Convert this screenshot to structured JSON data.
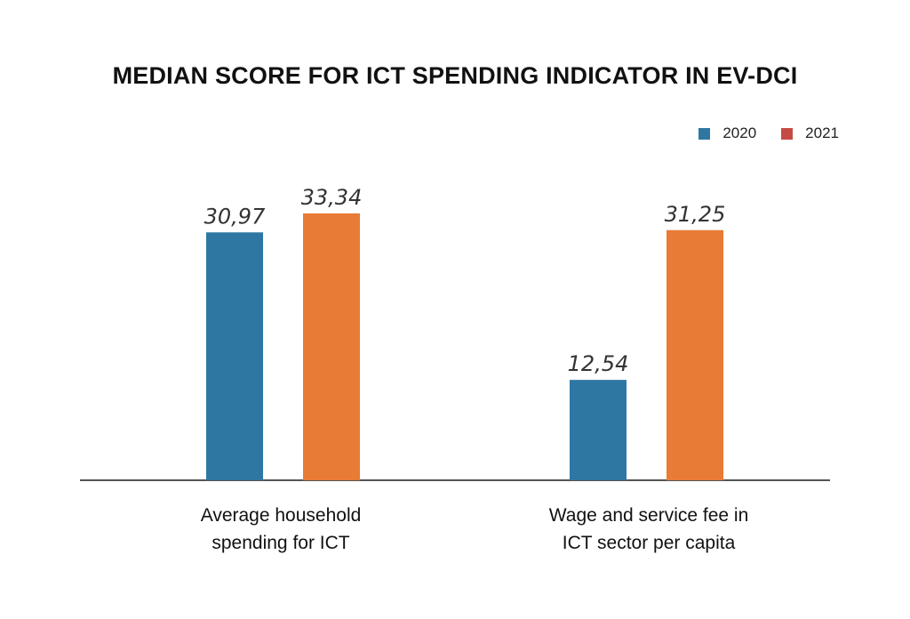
{
  "chart_data": {
    "type": "bar",
    "title": "MEDIAN SCORE FOR ICT SPENDING INDICATOR IN EV-DCI",
    "categories": [
      [
        "Average household",
        "spending for ICT"
      ],
      [
        "Wage and service fee in",
        "ICT sector per capita"
      ]
    ],
    "series": [
      {
        "name": "2020",
        "color": "#2f77a3",
        "values": [
          30.97,
          12.54
        ],
        "labels": [
          "30,97",
          "12,54"
        ]
      },
      {
        "name": "2021",
        "color": "#e87b35",
        "values": [
          33.34,
          31.25
        ],
        "labels": [
          "33,34",
          "31,25"
        ]
      }
    ],
    "ylim": [
      0,
      40
    ],
    "xlabel": "",
    "ylabel": "",
    "grid": false,
    "legend_position": "top-right"
  }
}
